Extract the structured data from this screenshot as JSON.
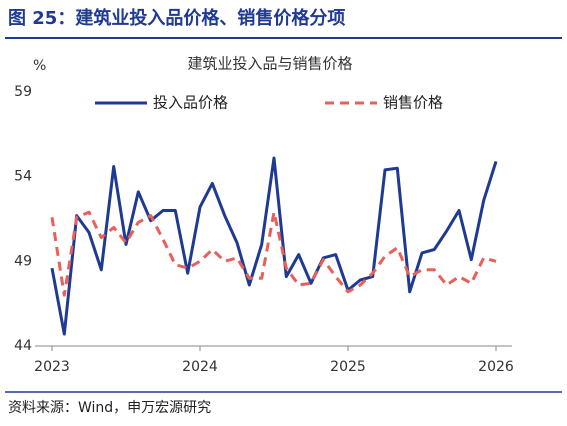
{
  "header": "图 25：建筑业投入品价格、销售价格分项",
  "source": "资料来源：Wind，申万宏源研究",
  "chart_data": {
    "type": "line",
    "title": "建筑业投入品与销售价格",
    "y_label": "%",
    "categories": [
      "2023",
      null,
      null,
      null,
      null,
      null,
      null,
      null,
      null,
      null,
      null,
      null,
      "2024",
      null,
      null,
      null,
      null,
      null,
      null,
      null,
      null,
      null,
      null,
      null,
      "2025",
      null,
      null,
      null,
      null,
      null,
      null,
      null,
      null,
      null,
      null,
      null,
      "2026"
    ],
    "series": [
      {
        "name": "投入品价格",
        "color": "#1f3a93",
        "dash": false,
        "values": [
          48.6,
          44.7,
          51.7,
          50.7,
          48.5,
          54.6,
          50.0,
          53.1,
          51.4,
          52.0,
          52.0,
          48.3,
          52.2,
          53.6,
          51.7,
          50.1,
          47.6,
          50.0,
          55.1,
          48.1,
          49.4,
          47.7,
          49.2,
          49.4,
          47.3,
          47.9,
          48.1,
          54.4,
          54.5,
          47.2,
          49.5,
          49.7,
          50.8,
          52.0,
          49.1,
          52.6,
          54.9
        ]
      },
      {
        "name": "销售价格",
        "color": "#e8605a",
        "dash": true,
        "values": [
          51.6,
          47.0,
          51.6,
          51.9,
          50.4,
          51.0,
          50.1,
          51.3,
          51.7,
          50.3,
          48.8,
          48.6,
          49.0,
          49.7,
          49.0,
          49.2,
          48.0,
          48.0,
          51.9,
          48.6,
          47.6,
          47.7,
          49.1,
          48.1,
          47.2,
          47.6,
          48.3,
          49.3,
          49.8,
          48.1,
          48.5,
          48.5,
          47.6,
          48.1,
          47.7,
          49.2,
          49.0
        ]
      }
    ],
    "ylim": [
      44,
      59
    ],
    "yticks": [
      44,
      49,
      54,
      59
    ],
    "grid": false,
    "legend": "top"
  }
}
